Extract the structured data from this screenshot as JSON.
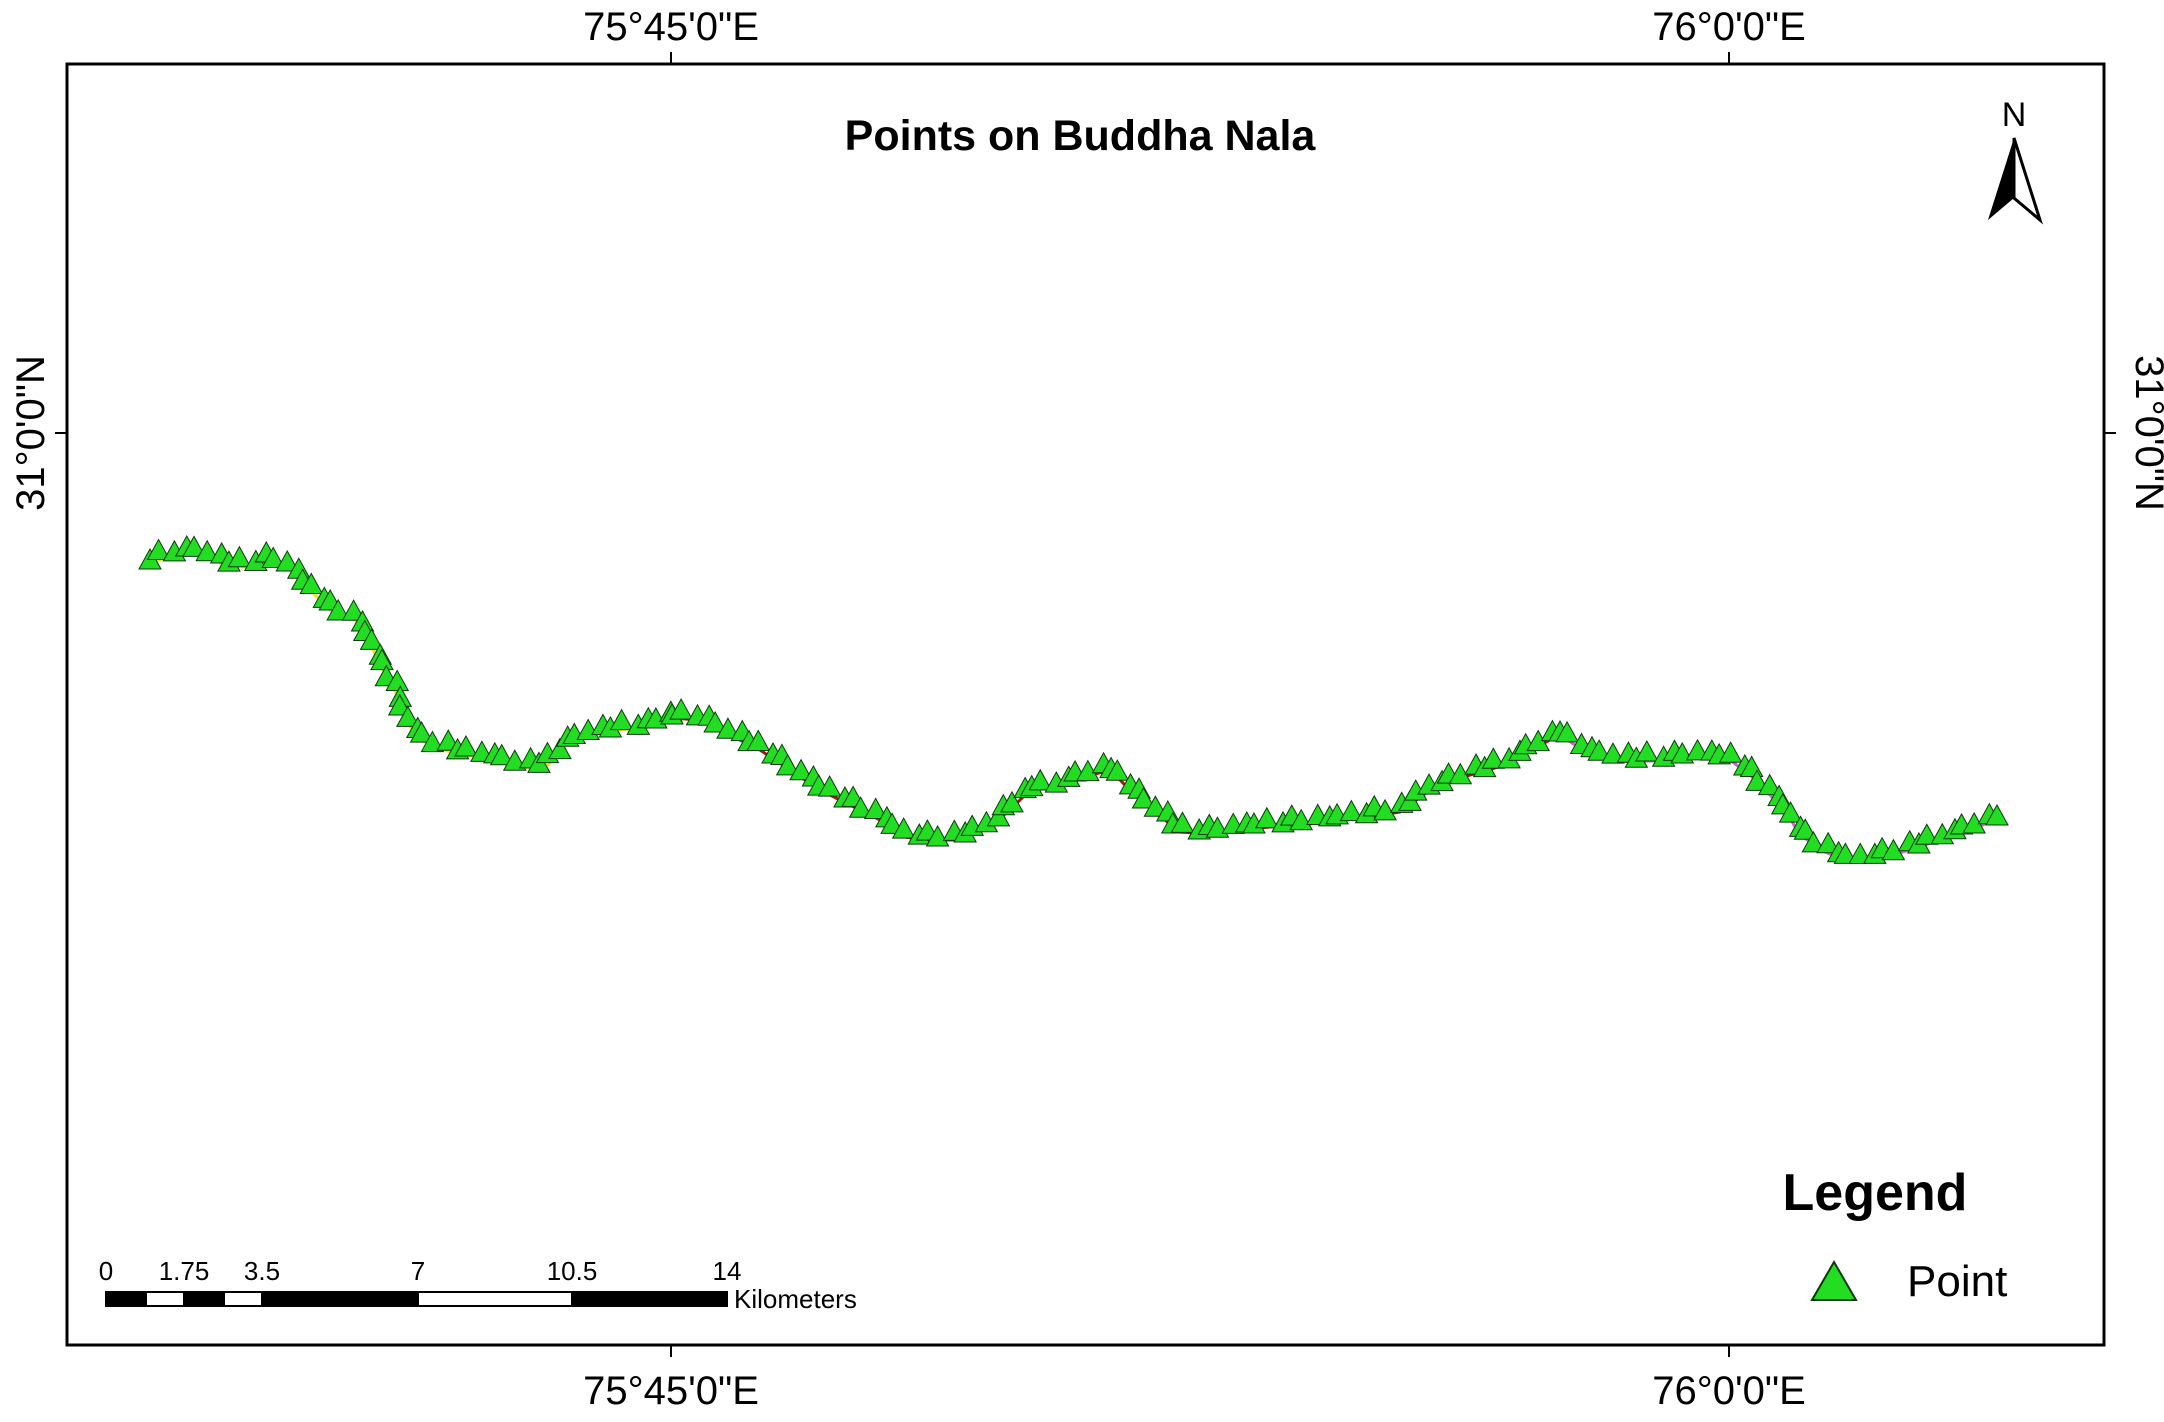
{
  "map": {
    "title": "Points on Buddha Nala",
    "grid_labels": {
      "top": [
        "75°45'0\"E",
        "76°0'0\"E"
      ],
      "bottom": [
        "75°45'0\"E",
        "76°0'0\"E"
      ],
      "left": "31°0'0\"N",
      "right": "31°0'0\"N"
    },
    "north_arrow_label": "N",
    "legend": {
      "title": "Legend",
      "items": [
        {
          "label": "Point",
          "symbol": "triangle-icon",
          "color": "#22dd22"
        }
      ]
    },
    "scale_bar": {
      "ticks": [
        "0",
        "1.75",
        "3.5",
        "7",
        "10.5",
        "14"
      ],
      "unit": "Kilometers"
    },
    "colors": {
      "point_fill": "#22dd22",
      "point_stroke": "#0a3a0a",
      "stream_segment_1": "#f0e020",
      "stream_segment_2": "#b01010",
      "stream_segment_3": "#cc66cc"
    },
    "stream_segments": [
      "yellow",
      "dark-red",
      "magenta"
    ]
  }
}
